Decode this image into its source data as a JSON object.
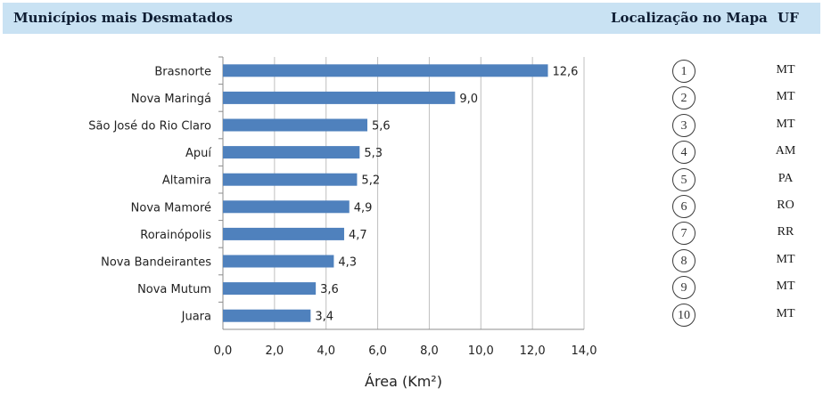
{
  "header": {
    "title": "Municípios mais Desmatados",
    "location_label": "Localização no Mapa",
    "uf_label": "UF"
  },
  "chart_data": {
    "type": "bar",
    "orientation": "horizontal",
    "categories": [
      "Brasnorte",
      "Nova Maringá",
      "São José do Rio Claro",
      "Apuí",
      "Altamira",
      "Nova Mamoré",
      "Rorainópolis",
      "Nova Bandeirantes",
      "Nova Mutum",
      "Juara"
    ],
    "values": [
      12.6,
      9.0,
      5.6,
      5.3,
      5.2,
      4.9,
      4.7,
      4.3,
      3.6,
      3.4
    ],
    "value_labels": [
      "12,6",
      "9,0",
      "5,6",
      "5,3",
      "5,2",
      "4,9",
      "4,7",
      "4,3",
      "3,6",
      "3,4"
    ],
    "xlabel": "Área (Km²)",
    "xlim": [
      0,
      14
    ],
    "xticks": [
      "0,0",
      "2,0",
      "4,0",
      "6,0",
      "8,0",
      "10,0",
      "12,0",
      "14,0"
    ],
    "grid": "vertical",
    "bar_color": "#4f81bd"
  },
  "map_refs": [
    {
      "number": "1",
      "uf": "MT"
    },
    {
      "number": "2",
      "uf": "MT"
    },
    {
      "number": "3",
      "uf": "MT"
    },
    {
      "number": "4",
      "uf": "AM"
    },
    {
      "number": "5",
      "uf": "PA"
    },
    {
      "number": "6",
      "uf": "RO"
    },
    {
      "number": "7",
      "uf": "RR"
    },
    {
      "number": "8",
      "uf": "MT"
    },
    {
      "number": "9",
      "uf": "MT"
    },
    {
      "number": "10",
      "uf": "MT"
    }
  ]
}
